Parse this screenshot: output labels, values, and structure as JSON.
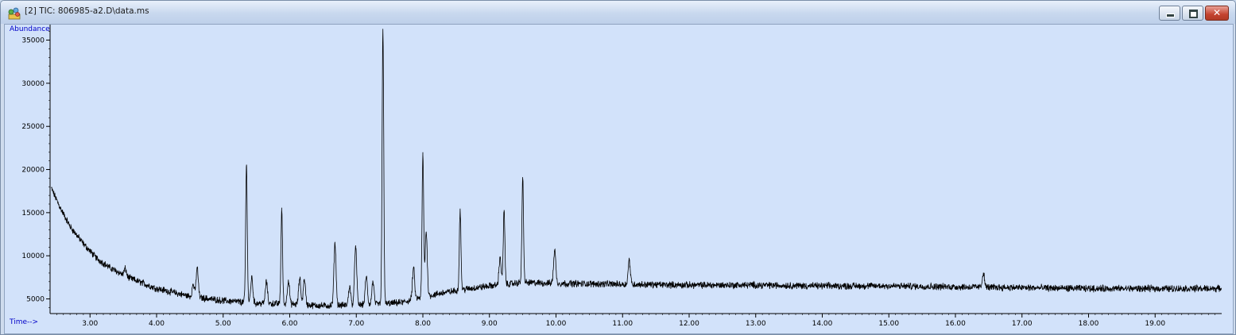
{
  "window": {
    "title": "[2] TIC: 806985-a2.D\\data.ms",
    "buttons": {
      "minimize": "minimize-icon",
      "maximize": "maximize-icon",
      "close": "close-icon"
    }
  },
  "chart_data": {
    "type": "line",
    "xlabel": "Time-->",
    "ylabel": "Abundance",
    "xlim": [
      2.4,
      20.0
    ],
    "ylim": [
      3300,
      36800
    ],
    "xticks": [
      "3.00",
      "4.00",
      "5.00",
      "6.00",
      "7.00",
      "8.00",
      "9.00",
      "10.00",
      "11.00",
      "12.00",
      "13.00",
      "14.00",
      "15.00",
      "16.00",
      "17.00",
      "18.00",
      "19.00"
    ],
    "yticks": [
      "5000",
      "10000",
      "15000",
      "20000",
      "25000",
      "30000",
      "35000"
    ],
    "grid": false,
    "line_color": "#000000",
    "background_color": "#d2e2fa",
    "label_color": "#0000c8",
    "baseline": [
      [
        2.42,
        17800
      ],
      [
        2.55,
        15600
      ],
      [
        2.7,
        13400
      ],
      [
        2.9,
        11400
      ],
      [
        3.1,
        9700
      ],
      [
        3.3,
        8600
      ],
      [
        3.6,
        7400
      ],
      [
        4.0,
        6200
      ],
      [
        4.5,
        5300
      ],
      [
        5.0,
        4800
      ],
      [
        5.5,
        4500
      ],
      [
        6.0,
        4400
      ],
      [
        6.5,
        4200
      ],
      [
        7.0,
        4300
      ],
      [
        7.4,
        4400
      ],
      [
        7.7,
        4600
      ],
      [
        8.0,
        5200
      ],
      [
        8.3,
        5700
      ],
      [
        8.7,
        6200
      ],
      [
        9.0,
        6500
      ],
      [
        9.5,
        6900
      ],
      [
        10.0,
        6800
      ],
      [
        11.0,
        6700
      ],
      [
        12.0,
        6600
      ],
      [
        13.0,
        6600
      ],
      [
        14.0,
        6500
      ],
      [
        15.0,
        6500
      ],
      [
        16.0,
        6400
      ],
      [
        17.0,
        6300
      ],
      [
        18.0,
        6200
      ],
      [
        19.0,
        6200
      ],
      [
        20.0,
        6200
      ]
    ],
    "peaks": [
      {
        "rt": 3.38,
        "height": 8100
      },
      {
        "rt": 3.53,
        "height": 8500
      },
      {
        "rt": 4.55,
        "height": 6700
      },
      {
        "rt": 4.61,
        "height": 8600
      },
      {
        "rt": 5.35,
        "height": 20500
      },
      {
        "rt": 5.43,
        "height": 7500
      },
      {
        "rt": 5.65,
        "height": 7000
      },
      {
        "rt": 5.88,
        "height": 15300
      },
      {
        "rt": 5.98,
        "height": 7200
      },
      {
        "rt": 6.15,
        "height": 7400
      },
      {
        "rt": 6.22,
        "height": 7300
      },
      {
        "rt": 6.68,
        "height": 11500
      },
      {
        "rt": 6.9,
        "height": 6500
      },
      {
        "rt": 6.99,
        "height": 11200
      },
      {
        "rt": 7.15,
        "height": 7600
      },
      {
        "rt": 7.25,
        "height": 7000
      },
      {
        "rt": 7.4,
        "height": 36300
      },
      {
        "rt": 7.86,
        "height": 8600
      },
      {
        "rt": 8.0,
        "height": 21700
      },
      {
        "rt": 8.05,
        "height": 12800
      },
      {
        "rt": 8.56,
        "height": 15400
      },
      {
        "rt": 9.16,
        "height": 9800
      },
      {
        "rt": 9.22,
        "height": 15300
      },
      {
        "rt": 9.5,
        "height": 19000
      },
      {
        "rt": 9.98,
        "height": 10700
      },
      {
        "rt": 11.1,
        "height": 9500
      },
      {
        "rt": 16.42,
        "height": 8000
      }
    ]
  }
}
